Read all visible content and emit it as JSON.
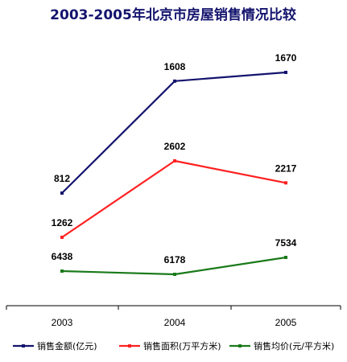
{
  "chart_data": {
    "type": "line",
    "title": "2003-2005年北京市房屋销售情况比较",
    "categories": [
      "2003",
      "2004",
      "2005"
    ],
    "series": [
      {
        "name": "销售金额(亿元)",
        "values": [
          812,
          1608,
          1670
        ],
        "color": "#14146e"
      },
      {
        "name": "销售面积(万平方米)",
        "values": [
          1262,
          2602,
          2217
        ],
        "color": "#ff2020"
      },
      {
        "name": "销售均价(元/平方米)",
        "values": [
          6438,
          6178,
          7534
        ],
        "color": "#1a7a1a"
      }
    ],
    "title_color": "#14146e",
    "legend_position": "bottom",
    "grid": false
  }
}
